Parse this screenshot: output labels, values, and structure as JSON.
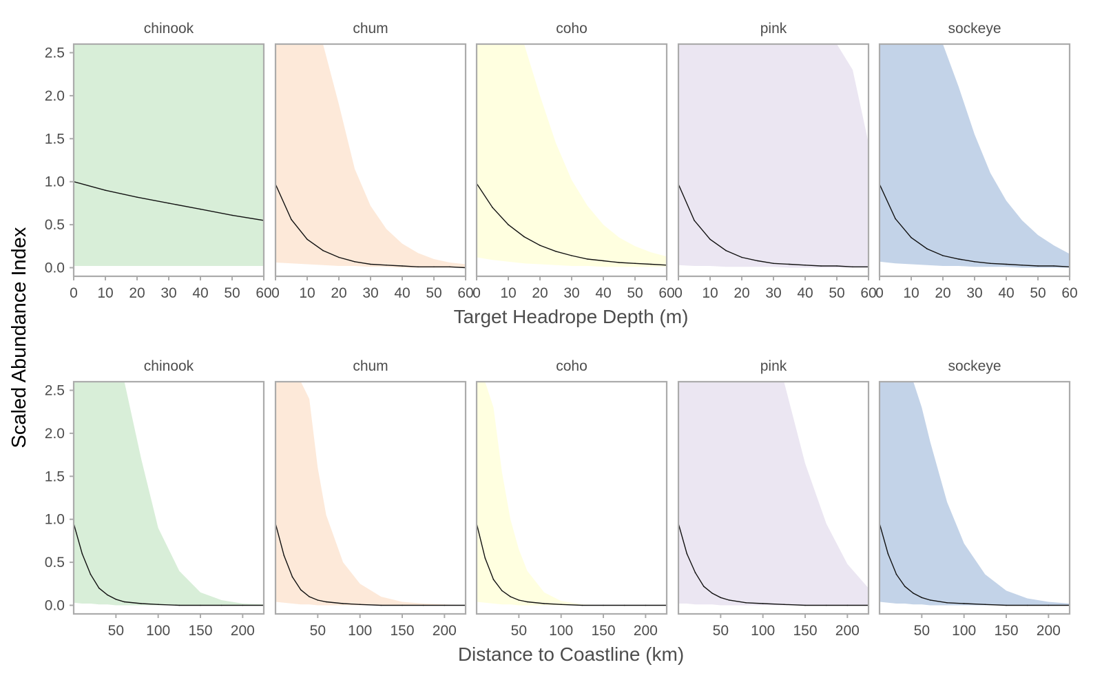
{
  "figure": {
    "ylabel": "Scaled Abundance Index"
  },
  "chart_data": [
    {
      "type": "area",
      "xlabel": "Target Headrope Depth (m)",
      "ylabel": "Scaled Abundance Index",
      "xlim": [
        0,
        60
      ],
      "ylim": [
        -0.1,
        2.6
      ],
      "x_ticks": [
        0,
        10,
        20,
        30,
        40,
        50,
        60
      ],
      "y_ticks": [
        0.0,
        0.5,
        1.0,
        1.5,
        2.0,
        2.5
      ],
      "y_tick_labels": [
        "0.0",
        "0.5",
        "1.0",
        "1.5",
        "2.0",
        "2.5"
      ],
      "grid": false,
      "panels": [
        {
          "name": "chinook",
          "fill_color": "#d8eed8",
          "x": [
            0,
            10,
            20,
            30,
            40,
            50,
            60
          ],
          "y": [
            1.0,
            0.9,
            0.82,
            0.75,
            0.68,
            0.61,
            0.55
          ],
          "lower": [
            0.02,
            0.02,
            0.02,
            0.02,
            0.02,
            0.02,
            0.02
          ],
          "upper": [
            2.6,
            2.6,
            2.6,
            2.6,
            2.6,
            2.6,
            2.6
          ]
        },
        {
          "name": "chum",
          "fill_color": "#fde9d9",
          "x": [
            0,
            5,
            10,
            15,
            20,
            25,
            30,
            35,
            40,
            45,
            50,
            55,
            60
          ],
          "y": [
            0.97,
            0.56,
            0.33,
            0.2,
            0.12,
            0.07,
            0.04,
            0.03,
            0.02,
            0.01,
            0.01,
            0.01,
            0.0
          ],
          "lower": [
            0.06,
            0.05,
            0.04,
            0.03,
            0.02,
            0.02,
            0.01,
            0.01,
            0.0,
            0.0,
            0.0,
            0.0,
            0.0
          ],
          "upper": [
            2.6,
            2.6,
            2.6,
            2.6,
            1.9,
            1.15,
            0.72,
            0.45,
            0.28,
            0.17,
            0.1,
            0.06,
            0.04
          ]
        },
        {
          "name": "coho",
          "fill_color": "#ffffe0",
          "x": [
            0,
            5,
            10,
            15,
            20,
            25,
            30,
            35,
            40,
            45,
            50,
            55,
            60
          ],
          "y": [
            0.98,
            0.7,
            0.5,
            0.36,
            0.26,
            0.19,
            0.14,
            0.1,
            0.08,
            0.06,
            0.05,
            0.04,
            0.03
          ],
          "lower": [
            0.12,
            0.09,
            0.07,
            0.05,
            0.04,
            0.03,
            0.02,
            0.02,
            0.01,
            0.01,
            0.01,
            0.01,
            0.01
          ],
          "upper": [
            2.6,
            2.6,
            2.6,
            2.6,
            2.0,
            1.45,
            1.02,
            0.72,
            0.5,
            0.35,
            0.25,
            0.18,
            0.13
          ]
        },
        {
          "name": "pink",
          "fill_color": "#ebe6f2",
          "x": [
            0,
            5,
            10,
            15,
            20,
            25,
            30,
            35,
            40,
            45,
            50,
            55,
            60
          ],
          "y": [
            0.97,
            0.55,
            0.33,
            0.2,
            0.12,
            0.08,
            0.05,
            0.04,
            0.03,
            0.02,
            0.02,
            0.01,
            0.01
          ],
          "lower": [
            0.03,
            0.02,
            0.02,
            0.01,
            0.01,
            0.01,
            0.01,
            0.0,
            0.0,
            0.0,
            0.0,
            0.0,
            0.0
          ],
          "upper": [
            2.6,
            2.6,
            2.6,
            2.6,
            2.6,
            2.6,
            2.6,
            2.6,
            2.6,
            2.6,
            2.6,
            2.3,
            1.45
          ]
        },
        {
          "name": "sockeye",
          "fill_color": "#c3d3e8",
          "x": [
            0,
            5,
            10,
            15,
            20,
            25,
            30,
            35,
            40,
            45,
            50,
            55,
            60
          ],
          "y": [
            0.97,
            0.57,
            0.35,
            0.22,
            0.14,
            0.1,
            0.07,
            0.05,
            0.04,
            0.03,
            0.02,
            0.02,
            0.01
          ],
          "lower": [
            0.07,
            0.05,
            0.04,
            0.03,
            0.02,
            0.02,
            0.01,
            0.01,
            0.01,
            0.0,
            0.0,
            0.0,
            0.0
          ],
          "upper": [
            2.6,
            2.6,
            2.6,
            2.6,
            2.6,
            2.1,
            1.55,
            1.1,
            0.78,
            0.55,
            0.38,
            0.26,
            0.16
          ]
        }
      ]
    },
    {
      "type": "area",
      "xlabel": "Distance to Coastline (km)",
      "ylabel": "Scaled Abundance Index",
      "xlim": [
        0,
        225
      ],
      "ylim": [
        -0.1,
        2.6
      ],
      "x_ticks": [
        50,
        100,
        150,
        200
      ],
      "y_ticks": [
        0.0,
        0.5,
        1.0,
        1.5,
        2.0,
        2.5
      ],
      "y_tick_labels": [
        "0.0",
        "0.5",
        "1.0",
        "1.5",
        "2.0",
        "2.5"
      ],
      "grid": false,
      "panels": [
        {
          "name": "chinook",
          "fill_color": "#d8eed8",
          "x": [
            0,
            10,
            20,
            30,
            40,
            50,
            60,
            80,
            100,
            125,
            150,
            175,
            200,
            225
          ],
          "y": [
            0.95,
            0.6,
            0.36,
            0.2,
            0.12,
            0.07,
            0.04,
            0.02,
            0.01,
            0.0,
            0.0,
            0.0,
            0.0,
            0.0
          ],
          "lower": [
            0.03,
            0.02,
            0.02,
            0.01,
            0.01,
            0.0,
            0.0,
            0.0,
            0.0,
            0.0,
            0.0,
            0.0,
            0.0,
            0.0
          ],
          "upper": [
            2.6,
            2.6,
            2.6,
            2.6,
            2.6,
            2.6,
            2.6,
            1.7,
            0.9,
            0.4,
            0.15,
            0.06,
            0.02,
            0.01
          ]
        },
        {
          "name": "chum",
          "fill_color": "#fde9d9",
          "x": [
            0,
            10,
            20,
            30,
            40,
            50,
            60,
            80,
            100,
            125,
            150,
            175,
            200,
            225
          ],
          "y": [
            0.95,
            0.58,
            0.33,
            0.18,
            0.1,
            0.06,
            0.04,
            0.02,
            0.01,
            0.0,
            0.0,
            0.0,
            0.0,
            0.0
          ],
          "lower": [
            0.04,
            0.03,
            0.02,
            0.01,
            0.01,
            0.0,
            0.0,
            0.0,
            0.0,
            0.0,
            0.0,
            0.0,
            0.0,
            0.0
          ],
          "upper": [
            2.6,
            2.6,
            2.6,
            2.6,
            2.4,
            1.6,
            1.05,
            0.5,
            0.25,
            0.1,
            0.04,
            0.02,
            0.01,
            0.0
          ]
        },
        {
          "name": "coho",
          "fill_color": "#ffffe0",
          "x": [
            0,
            10,
            20,
            30,
            40,
            50,
            60,
            80,
            100,
            125,
            150,
            175,
            200,
            225
          ],
          "y": [
            0.95,
            0.55,
            0.3,
            0.17,
            0.1,
            0.06,
            0.04,
            0.02,
            0.01,
            0.0,
            0.0,
            0.0,
            0.0,
            0.0
          ],
          "lower": [
            0.04,
            0.03,
            0.02,
            0.01,
            0.01,
            0.0,
            0.0,
            0.0,
            0.0,
            0.0,
            0.0,
            0.0,
            0.0,
            0.0
          ],
          "upper": [
            2.6,
            2.6,
            2.3,
            1.55,
            1.0,
            0.65,
            0.4,
            0.15,
            0.05,
            0.01,
            0.0,
            0.0,
            0.0,
            0.0
          ]
        },
        {
          "name": "pink",
          "fill_color": "#ebe6f2",
          "x": [
            0,
            10,
            20,
            30,
            40,
            50,
            60,
            80,
            100,
            125,
            150,
            175,
            200,
            225
          ],
          "y": [
            0.95,
            0.6,
            0.38,
            0.22,
            0.14,
            0.09,
            0.06,
            0.03,
            0.02,
            0.01,
            0.0,
            0.0,
            0.0,
            0.0
          ],
          "lower": [
            0.02,
            0.02,
            0.01,
            0.01,
            0.01,
            0.0,
            0.0,
            0.0,
            0.0,
            0.0,
            0.0,
            0.0,
            0.0,
            0.0
          ],
          "upper": [
            2.6,
            2.6,
            2.6,
            2.6,
            2.6,
            2.6,
            2.6,
            2.6,
            2.6,
            2.6,
            1.65,
            0.95,
            0.48,
            0.2
          ]
        },
        {
          "name": "sockeye",
          "fill_color": "#c3d3e8",
          "x": [
            0,
            10,
            20,
            30,
            40,
            50,
            60,
            80,
            100,
            125,
            150,
            175,
            200,
            225
          ],
          "y": [
            0.95,
            0.6,
            0.36,
            0.22,
            0.14,
            0.09,
            0.06,
            0.03,
            0.02,
            0.01,
            0.0,
            0.0,
            0.0,
            0.0
          ],
          "lower": [
            0.04,
            0.03,
            0.02,
            0.02,
            0.01,
            0.01,
            0.0,
            0.0,
            0.0,
            0.0,
            0.0,
            0.0,
            0.0,
            0.0
          ],
          "upper": [
            2.6,
            2.6,
            2.6,
            2.6,
            2.6,
            2.3,
            1.9,
            1.2,
            0.72,
            0.36,
            0.17,
            0.08,
            0.04,
            0.02
          ]
        }
      ]
    }
  ]
}
